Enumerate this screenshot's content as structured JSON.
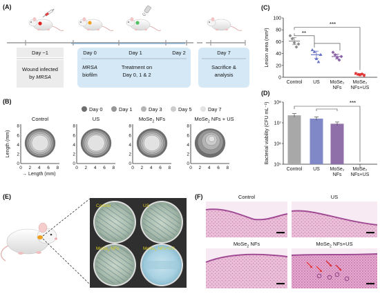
{
  "panel_labels": {
    "a": "(A)",
    "b": "(B)",
    "c": "(C)",
    "d": "(D)",
    "e": "(E)",
    "f": "(F)"
  },
  "timeline": {
    "days": [
      "Day −1",
      "Day 0",
      "Day 1",
      "Day 2",
      "Day 7"
    ],
    "step1_line1": "Wound infected",
    "step1_line2_prefix": "by ",
    "step1_line2_italic": "MRSA",
    "biofilm_line1": "MRSA",
    "biofilm_line2": "biofilm",
    "treatment_line1": "Treatment on",
    "treatment_line2": "Day 0, 1 & 2",
    "end_line1": "Sacrifice &",
    "end_line2": "analysis"
  },
  "wound_legend": [
    "Day 0",
    "Day 1",
    "Day 3",
    "Day 5",
    "Day 7"
  ],
  "wound_legend_colors": [
    "#6e6e6e",
    "#969696",
    "#b4b4b4",
    "#cccccc",
    "#e2e2e2"
  ],
  "wound_groups": [
    "Control",
    "US",
    "MoSe",
    "MoSe"
  ],
  "wound_group_suffix": [
    "",
    "",
    "2 NFs",
    "2 NFs + US"
  ],
  "wound_axes": {
    "ylabel": "Length (mm)",
    "xlabel": "Length (mm)",
    "ticks": [
      "0",
      "2",
      "4",
      "6",
      "8"
    ]
  },
  "chart_data": [
    {
      "type": "scatter",
      "panel": "C",
      "ylabel": "Lesion area (mm²)",
      "ylim": [
        0,
        100
      ],
      "yticks": [
        "0",
        "20",
        "40",
        "60",
        "80",
        "100"
      ],
      "categories": [
        "Control",
        "US",
        "MoSe₂ NFs",
        "MoSe₂ NFs+US"
      ],
      "means": [
        61,
        38,
        35,
        5
      ],
      "errors": [
        6,
        6,
        4,
        1.5
      ],
      "points": [
        [
          70,
          65,
          58,
          51,
          56
        ],
        [
          46,
          43,
          31,
          26,
          38
        ],
        [
          42,
          38,
          33,
          29,
          35
        ],
        [
          7,
          5,
          4,
          6,
          3
        ]
      ],
      "colors": [
        "#8c8c8c",
        "#6b74c7",
        "#8a63a8",
        "#e03030"
      ],
      "significance": [
        "**",
        "***"
      ]
    },
    {
      "type": "bar",
      "panel": "D",
      "ylabel": "Bacterial viability (CFU mL⁻¹)",
      "log_scale": true,
      "yticks": [
        "10⁵",
        "10⁶",
        "10⁷",
        "10⁸"
      ],
      "categories": [
        "Control",
        "US",
        "MoSe₂ NFs",
        "MoSe₂ NFs+US"
      ],
      "values": [
        23000000,
        16000000,
        9000000,
        80000
      ],
      "colors": [
        "#a8a8a8",
        "#8088c8",
        "#9070a8",
        "#f07070"
      ],
      "significance": [
        "***"
      ]
    }
  ],
  "plate_labels": [
    "Control",
    "US",
    "MoSe",
    "MoSe"
  ],
  "plate_label_suffix": [
    "",
    "",
    "2 NFs",
    "2 NFs+US"
  ],
  "histology_titles": [
    "Control",
    "US",
    "MoSe",
    "MoSe"
  ],
  "histology_title_suffix": [
    "",
    "",
    "2 NFs",
    "2 NFs+US"
  ]
}
